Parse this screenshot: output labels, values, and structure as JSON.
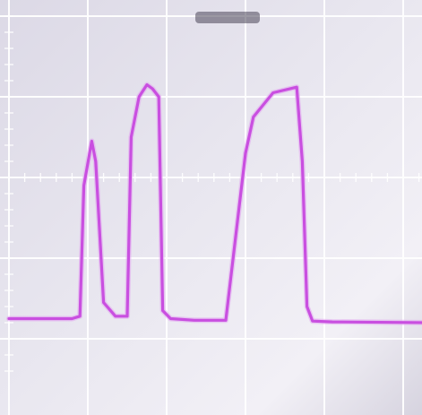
{
  "screen": {
    "background": "#dcd9e6",
    "grid_color": "#ffffff",
    "trace_color": "#c94fe0",
    "smudge_icon": "blurred-label-mark"
  },
  "chart_data": {
    "type": "line",
    "title": "",
    "xlabel": "",
    "ylabel": "",
    "grid": true,
    "divisions": {
      "x": 5,
      "y": 4
    },
    "xlim": [
      0,
      5.35
    ],
    "ylim": [
      -2.0,
      2.0
    ],
    "series": [
      {
        "color": "#c94fe0",
        "x": [
          0.0,
          0.8,
          0.9,
          0.95,
          1.05,
          1.1,
          1.2,
          1.35,
          1.5,
          1.55,
          1.65,
          1.75,
          1.82,
          1.9,
          1.95,
          2.05,
          2.35,
          2.6,
          2.75,
          3.0,
          3.1,
          3.35,
          3.65,
          3.72,
          3.78,
          3.85,
          4.1,
          5.33
        ],
        "y": [
          -1.75,
          -1.75,
          -1.72,
          -0.1,
          0.45,
          0.2,
          -1.55,
          -1.72,
          -1.72,
          0.5,
          1.0,
          1.15,
          1.1,
          1.0,
          -1.65,
          -1.75,
          -1.77,
          -1.77,
          -1.77,
          0.3,
          0.75,
          1.05,
          1.12,
          0.2,
          -1.6,
          -1.78,
          -1.79,
          -1.8
        ]
      }
    ]
  }
}
